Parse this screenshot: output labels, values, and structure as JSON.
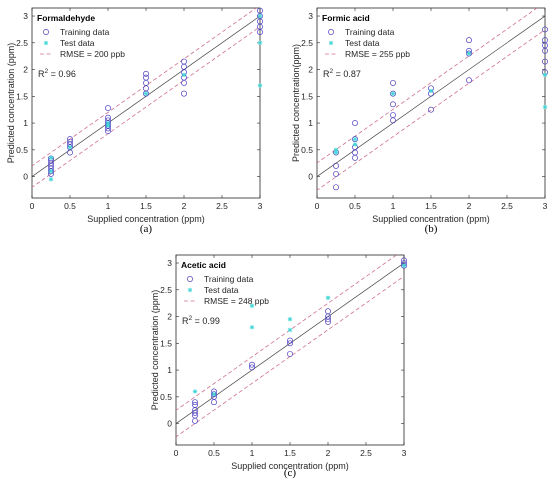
{
  "colors": {
    "training": "#4b3fbf",
    "test": "#3fd6d6",
    "bounds": "#cf6f91",
    "fit": "#444444",
    "axis": "#262626"
  },
  "legend": {
    "training_label": "Training data",
    "test_label": "Test data"
  },
  "chart_data": [
    {
      "type": "scatter",
      "title": "Formaldehyde",
      "caption": "(a)",
      "xlabel": "Supplied concentration (ppm)",
      "ylabel": "Predicted concentration (ppm)",
      "xlim": [
        0,
        3
      ],
      "ylim": [
        -0.4,
        3.15
      ],
      "xticks": [
        "0",
        "0.5",
        "1",
        "1.5",
        "2",
        "2.5",
        "3"
      ],
      "yticks": [
        "0",
        "0.5",
        "1",
        "1.5",
        "2",
        "2.5",
        "3"
      ],
      "rmse_label": "RMSE = 200 ppb",
      "r2_label": "R",
      "r2_sup": "2",
      "r2_value": " = 0.96",
      "rmse_ppm": 0.2,
      "series": [
        {
          "name": "Training data",
          "points": [
            [
              0.25,
              0.34
            ],
            [
              0.25,
              0.3
            ],
            [
              0.25,
              0.25
            ],
            [
              0.25,
              0.2
            ],
            [
              0.25,
              0.15
            ],
            [
              0.25,
              0.1
            ],
            [
              0.25,
              0.05
            ],
            [
              0.5,
              0.45
            ],
            [
              0.5,
              0.55
            ],
            [
              0.5,
              0.6
            ],
            [
              0.5,
              0.65
            ],
            [
              0.5,
              0.7
            ],
            [
              1,
              0.85
            ],
            [
              1,
              0.9
            ],
            [
              1,
              0.95
            ],
            [
              1,
              1.0
            ],
            [
              1,
              1.05
            ],
            [
              1,
              1.1
            ],
            [
              1,
              1.28
            ],
            [
              1.5,
              1.55
            ],
            [
              1.5,
              1.65
            ],
            [
              1.5,
              1.75
            ],
            [
              1.5,
              1.85
            ],
            [
              1.5,
              1.92
            ],
            [
              2,
              1.55
            ],
            [
              2,
              1.75
            ],
            [
              2,
              1.85
            ],
            [
              2,
              1.95
            ],
            [
              2,
              2.05
            ],
            [
              2,
              2.15
            ],
            [
              3,
              2.7
            ],
            [
              3,
              2.8
            ],
            [
              3,
              2.9
            ],
            [
              3,
              3.0
            ],
            [
              3,
              3.1
            ]
          ]
        },
        {
          "name": "Test data",
          "points": [
            [
              0.25,
              -0.05
            ],
            [
              0.25,
              0.35
            ],
            [
              0.25,
              0.1
            ],
            [
              0.5,
              0.55
            ],
            [
              1,
              1.0
            ],
            [
              1,
              0.95
            ],
            [
              1.5,
              1.55
            ],
            [
              2,
              1.9
            ],
            [
              3,
              1.7
            ],
            [
              3,
              2.5
            ],
            [
              3,
              3.0
            ]
          ]
        }
      ]
    },
    {
      "type": "scatter",
      "title": "Formic acid",
      "caption": "(b)",
      "xlabel": "Supplied concentration (ppm)",
      "ylabel": "Predicted concentration(ppm)",
      "xlim": [
        0,
        3
      ],
      "ylim": [
        -0.4,
        3.15
      ],
      "xticks": [
        "0",
        "0.5",
        "1",
        "1.5",
        "2",
        "2.5",
        "3"
      ],
      "yticks": [
        "0",
        "0.5",
        "1",
        "1.5",
        "2",
        "2.5",
        "3"
      ],
      "rmse_label": "RMSE = 255 ppb",
      "r2_label": "R",
      "r2_sup": "2",
      "r2_value": " = 0.87",
      "rmse_ppm": 0.255,
      "series": [
        {
          "name": "Training data",
          "points": [
            [
              0.25,
              -0.2
            ],
            [
              0.25,
              0.05
            ],
            [
              0.25,
              0.2
            ],
            [
              0.25,
              0.45
            ],
            [
              0.5,
              0.35
            ],
            [
              0.5,
              0.45
            ],
            [
              0.5,
              0.55
            ],
            [
              0.5,
              0.7
            ],
            [
              0.5,
              1.0
            ],
            [
              1,
              1.05
            ],
            [
              1,
              1.15
            ],
            [
              1,
              1.35
            ],
            [
              1,
              1.55
            ],
            [
              1,
              1.75
            ],
            [
              1.5,
              1.25
            ],
            [
              1.5,
              1.55
            ],
            [
              1.5,
              1.65
            ],
            [
              2,
              1.8
            ],
            [
              2,
              2.3
            ],
            [
              2,
              2.35
            ],
            [
              2,
              2.55
            ],
            [
              3,
              1.95
            ],
            [
              3,
              2.15
            ],
            [
              3,
              2.35
            ],
            [
              3,
              2.45
            ],
            [
              3,
              2.55
            ],
            [
              3,
              2.75
            ]
          ]
        },
        {
          "name": "Test data",
          "points": [
            [
              0.25,
              0.5
            ],
            [
              0.25,
              0.45
            ],
            [
              0.5,
              0.7
            ],
            [
              0.5,
              0.6
            ],
            [
              1,
              1.55
            ],
            [
              1.5,
              1.6
            ],
            [
              2,
              2.3
            ],
            [
              3,
              1.3
            ],
            [
              3,
              1.9
            ]
          ]
        }
      ]
    },
    {
      "type": "scatter",
      "title": "Acetic acid",
      "caption": "(c)",
      "xlabel": "Supplied concentration (ppm)",
      "ylabel": "Predicted concentration (ppm)",
      "xlim": [
        0,
        3
      ],
      "ylim": [
        -0.4,
        3.15
      ],
      "xticks": [
        "0",
        "0.5",
        "1",
        "1.5",
        "2",
        "2.5",
        "3"
      ],
      "yticks": [
        "0",
        "0.5",
        "1",
        "1.5",
        "2",
        "2.5",
        "3"
      ],
      "rmse_label": "RMSE = 248 ppb",
      "r2_label": "R",
      "r2_sup": "2",
      "r2_value": " = 0.99",
      "rmse_ppm": 0.248,
      "series": [
        {
          "name": "Training data",
          "points": [
            [
              0.25,
              0.05
            ],
            [
              0.25,
              0.15
            ],
            [
              0.25,
              0.2
            ],
            [
              0.25,
              0.25
            ],
            [
              0.25,
              0.35
            ],
            [
              0.25,
              0.4
            ],
            [
              0.5,
              0.4
            ],
            [
              0.5,
              0.5
            ],
            [
              0.5,
              0.55
            ],
            [
              0.5,
              0.6
            ],
            [
              1,
              1.05
            ],
            [
              1,
              1.1
            ],
            [
              1.5,
              1.3
            ],
            [
              1.5,
              1.5
            ],
            [
              1.5,
              1.55
            ],
            [
              2,
              1.9
            ],
            [
              2,
              1.95
            ],
            [
              2,
              2.0
            ],
            [
              2,
              2.1
            ],
            [
              3,
              2.95
            ],
            [
              3,
              3.0
            ],
            [
              3,
              3.05
            ]
          ]
        },
        {
          "name": "Test data",
          "points": [
            [
              0.25,
              0.6
            ],
            [
              0.5,
              0.55
            ],
            [
              1,
              1.8
            ],
            [
              1,
              2.2
            ],
            [
              1.5,
              1.75
            ],
            [
              1.5,
              1.95
            ],
            [
              2,
              2.35
            ],
            [
              3,
              2.95
            ]
          ]
        }
      ]
    }
  ]
}
